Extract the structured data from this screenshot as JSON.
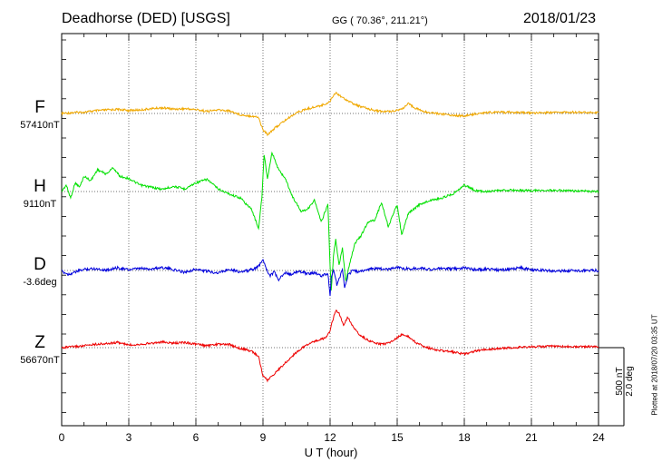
{
  "header": {
    "station": "Deadhorse (DED)  [USGS]",
    "coords": "GG ( 70.36°, 211.21°)",
    "date": "2018/01/23"
  },
  "footer": {
    "plotted": "Plotted at 2018/07/20 03:35 UT"
  },
  "scale": {
    "nt": "500 nT",
    "deg": "2.0 deg"
  },
  "colors": {
    "F": "#f0a800",
    "H": "#00e000",
    "D": "#0000dd",
    "Z": "#ee0000"
  },
  "chart_data": {
    "type": "line",
    "xlabel": "U T (hour)",
    "xlim": [
      0,
      24
    ],
    "xticks": [
      "0",
      "3",
      "6",
      "9",
      "12",
      "15",
      "18",
      "21",
      "24"
    ],
    "grid": true,
    "series": [
      {
        "name": "F",
        "baseline_label": "57410nT",
        "color": "#f0a800",
        "x": [
          0,
          0.5,
          1,
          1.5,
          2,
          2.5,
          3,
          3.5,
          4,
          4.5,
          5,
          5.5,
          6,
          6.5,
          7,
          7.5,
          8,
          8.5,
          8.8,
          9.0,
          9.2,
          9.5,
          9.8,
          10.1,
          10.5,
          11.0,
          11.5,
          11.8,
          12.0,
          12.1,
          12.25,
          12.4,
          12.6,
          12.8,
          13.0,
          13.3,
          13.6,
          14.0,
          14.4,
          14.8,
          15.2,
          15.5,
          15.8,
          16.2,
          16.8,
          17.5,
          18.0,
          18.5,
          19,
          20,
          21,
          22,
          23,
          24
        ],
        "values": [
          0,
          20,
          30,
          60,
          80,
          95,
          70,
          80,
          110,
          130,
          100,
          110,
          90,
          50,
          80,
          60,
          -30,
          -60,
          -90,
          -380,
          -480,
          -350,
          -230,
          -120,
          20,
          110,
          170,
          220,
          280,
          380,
          480,
          430,
          350,
          300,
          230,
          170,
          120,
          70,
          40,
          60,
          100,
          220,
          130,
          40,
          0,
          -40,
          -60,
          -10,
          20,
          30,
          10,
          20,
          30,
          20
        ]
      },
      {
        "name": "H",
        "baseline_label": "9110nT",
        "color": "#00e000",
        "x": [
          0,
          0.2,
          0.4,
          0.6,
          0.8,
          1.0,
          1.3,
          1.6,
          2.0,
          2.3,
          2.6,
          3.0,
          3.5,
          4.0,
          4.5,
          5.0,
          5.5,
          6.0,
          6.5,
          7.0,
          7.5,
          8.0,
          8.5,
          8.8,
          8.95,
          9.05,
          9.2,
          9.4,
          9.7,
          10.0,
          10.3,
          10.7,
          11.0,
          11.3,
          11.6,
          11.9,
          12.0,
          12.05,
          12.15,
          12.25,
          12.4,
          12.55,
          12.7,
          12.9,
          13.1,
          13.4,
          13.7,
          14.0,
          14.3,
          14.6,
          15.0,
          15.2,
          15.5,
          16.0,
          16.5,
          17.0,
          17.5,
          18.0,
          18.5,
          19,
          20,
          21,
          22,
          23,
          24
        ],
        "values": [
          0,
          150,
          -150,
          200,
          100,
          350,
          250,
          500,
          400,
          550,
          350,
          300,
          150,
          100,
          50,
          120,
          60,
          200,
          280,
          60,
          -60,
          -150,
          -420,
          -850,
          -150,
          850,
          300,
          900,
          500,
          300,
          -100,
          -450,
          -400,
          -200,
          -700,
          -300,
          -1700,
          -2250,
          -1500,
          -1100,
          -1700,
          -1300,
          -2050,
          -1600,
          -1200,
          -1000,
          -700,
          -650,
          -250,
          -800,
          -300,
          -1000,
          -500,
          -300,
          -200,
          -150,
          -50,
          150,
          20,
          0,
          30,
          20,
          30,
          10,
          0
        ]
      },
      {
        "name": "D",
        "baseline_label": "-3.6deg",
        "color": "#0000dd",
        "x": [
          0,
          0.3,
          0.6,
          1.0,
          1.5,
          2.0,
          2.5,
          3.0,
          3.5,
          4.0,
          4.5,
          5.0,
          5.5,
          6.0,
          6.5,
          7.0,
          7.5,
          8.0,
          8.4,
          8.7,
          8.9,
          9.0,
          9.15,
          9.3,
          9.5,
          9.7,
          10.0,
          10.3,
          10.6,
          11.0,
          11.3,
          11.6,
          11.9,
          12.0,
          12.05,
          12.15,
          12.3,
          12.45,
          12.55,
          12.65,
          12.8,
          13.0,
          13.3,
          13.6,
          14.0,
          14.5,
          15.0,
          15.5,
          16.0,
          16.5,
          17.0,
          17.5,
          18.0,
          18.5,
          19,
          19.5,
          20,
          20.5,
          21,
          21.5,
          22,
          22.5,
          23,
          23.5,
          24
        ],
        "values": [
          -0.1,
          -0.5,
          -0.2,
          0.15,
          0.25,
          0.05,
          0.35,
          0.1,
          0.25,
          0.2,
          0.4,
          0.1,
          -0.2,
          0.15,
          -0.1,
          -0.3,
          0.2,
          -0.2,
          0.05,
          0.3,
          0.9,
          1.45,
          0.3,
          -0.7,
          -0.2,
          -1.2,
          -0.3,
          -0.5,
          -0.1,
          -0.4,
          -0.3,
          -0.7,
          -0.4,
          -3.25,
          -1.0,
          0.2,
          -1.8,
          -0.8,
          0.3,
          -2.2,
          -0.6,
          0.0,
          -0.2,
          0.1,
          0.25,
          0.15,
          0.4,
          0.2,
          0.3,
          0.15,
          0.25,
          0.2,
          0.35,
          0.1,
          0.2,
          0.05,
          0.15,
          0.35,
          0.1,
          0.05,
          -0.1,
          0.0,
          -0.05,
          0.05,
          0.0
        ]
      },
      {
        "name": "Z",
        "baseline_label": "56670nT",
        "color": "#ee0000",
        "x": [
          0,
          0.5,
          1,
          1.5,
          2,
          2.5,
          3,
          3.5,
          4,
          4.5,
          5,
          5.5,
          6,
          6.5,
          7,
          7.5,
          8,
          8.5,
          8.8,
          9.0,
          9.2,
          9.5,
          9.8,
          10.1,
          10.5,
          11.0,
          11.5,
          11.8,
          12.0,
          12.1,
          12.25,
          12.4,
          12.6,
          12.8,
          13.0,
          13.3,
          13.6,
          14.0,
          14.4,
          14.8,
          15.2,
          15.5,
          15.8,
          16.2,
          16.8,
          17.5,
          18.0,
          18.5,
          19,
          20,
          21,
          22,
          23,
          24
        ],
        "values": [
          0,
          20,
          40,
          80,
          90,
          120,
          60,
          80,
          100,
          130,
          100,
          120,
          80,
          40,
          80,
          70,
          -20,
          -80,
          -200,
          -650,
          -750,
          -600,
          -450,
          -300,
          -100,
          80,
          180,
          220,
          380,
          600,
          850,
          780,
          520,
          700,
          500,
          300,
          200,
          100,
          80,
          150,
          300,
          250,
          130,
          20,
          -60,
          -100,
          -150,
          -80,
          -40,
          0,
          20,
          30,
          20,
          20
        ]
      }
    ]
  }
}
